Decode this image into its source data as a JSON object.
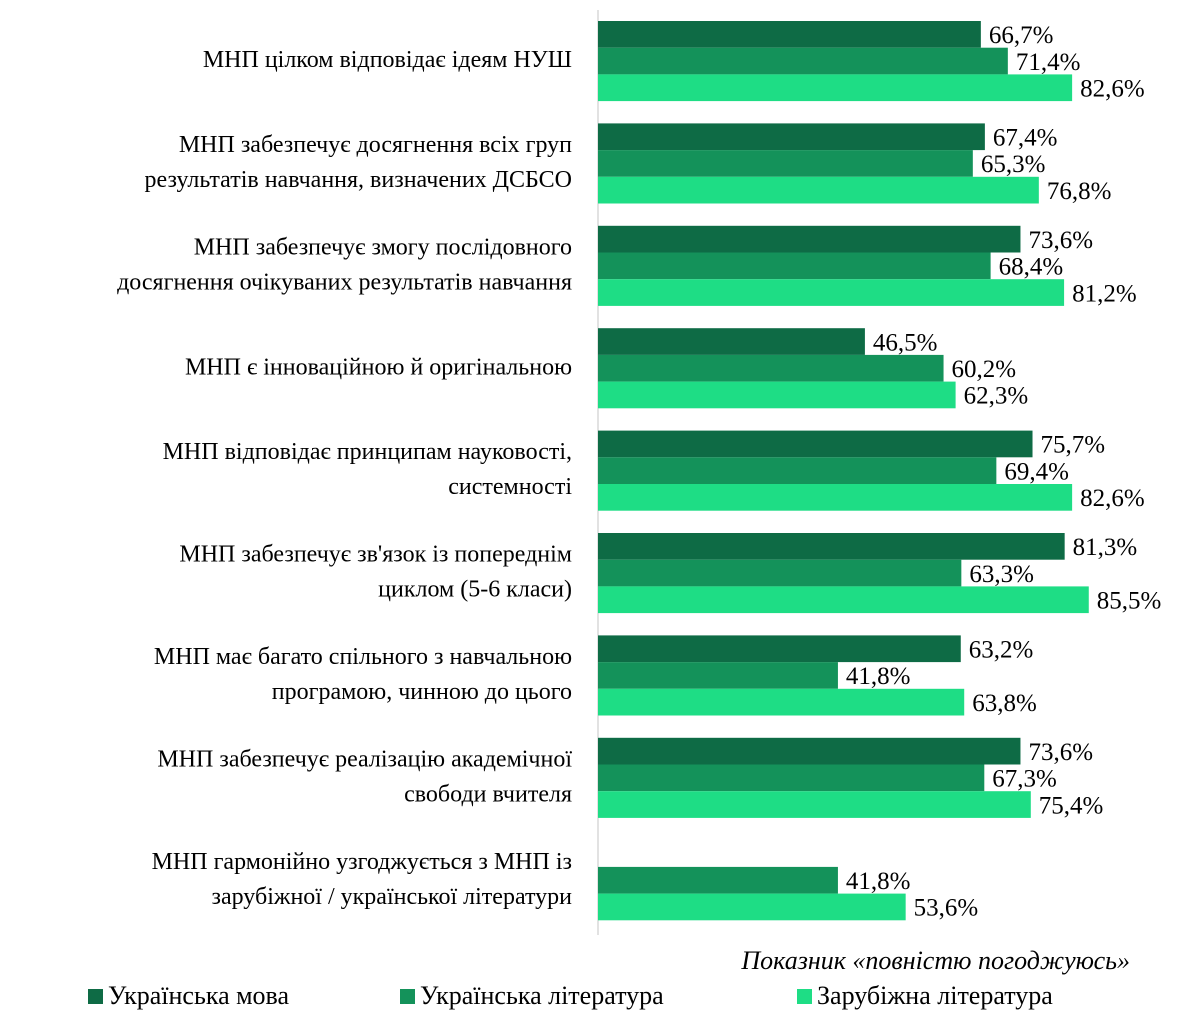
{
  "chart_data": {
    "type": "bar",
    "orientation": "horizontal",
    "x_label": "Показник «повністю погоджуюсь»",
    "categories": [
      "МНП цілком відповідає ідеям НУШ",
      "МНП забезпечує досягнення всіх груп\nрезультатів навчання, визначених ДСБСО",
      "МНП забезпечує змогу послідовного\nдосягнення очікуваних результатів навчання",
      "МНП є інноваційною й оригінальною",
      "МНП відповідає принципам науковості,\nсистемності",
      "МНП забезпечує зв'язок із попереднім\nциклом (5-6 класи)",
      "МНП має багато спільного з навчальною\nпрограмою, чинною до цього",
      "МНП забезпечує реалізацію академічної\nсвободи вчителя",
      "МНП гармонійно узгоджується з МНП із\nзарубіжної / української літератури"
    ],
    "series": [
      {
        "name": "Українська мова",
        "color": "#0e6b45",
        "values": [
          66.7,
          67.4,
          73.6,
          46.5,
          75.7,
          81.3,
          63.2,
          73.6,
          null
        ],
        "value_labels": [
          "66,7%",
          "67,4%",
          "73,6%",
          "46,5%",
          "75,7%",
          "81,3%",
          "63,2%",
          "73,6%",
          null
        ]
      },
      {
        "name": "Українська література",
        "color": "#14925a",
        "values": [
          71.4,
          65.3,
          68.4,
          60.2,
          69.4,
          63.3,
          41.8,
          67.3,
          41.8
        ],
        "value_labels": [
          "71,4%",
          "65,3%",
          "68,4%",
          "60,2%",
          "69,4%",
          "63,3%",
          "41,8%",
          "67,3%",
          "41,8%"
        ]
      },
      {
        "name": "Зарубіжна література",
        "color": "#1edd85",
        "values": [
          82.6,
          76.8,
          81.2,
          62.3,
          82.6,
          85.5,
          63.8,
          75.4,
          53.6
        ],
        "value_labels": [
          "82,6%",
          "76,8%",
          "81,2%",
          "62,3%",
          "82,6%",
          "85,5%",
          "63,8%",
          "75,4%",
          "53,6%"
        ]
      }
    ],
    "xlim": [
      0,
      100
    ]
  }
}
